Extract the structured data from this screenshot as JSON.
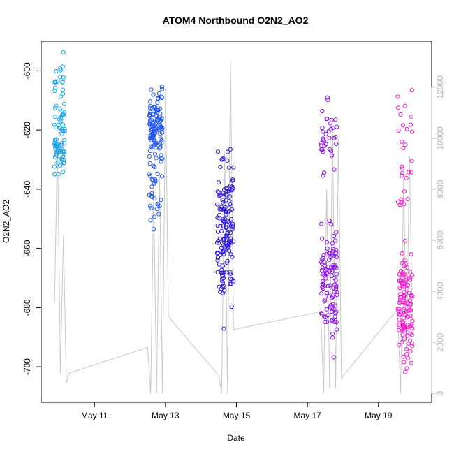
{
  "chart_data": {
    "type": "scatter",
    "title": "ATOM4 Northbound O2N2_AO2",
    "xlabel": "Date",
    "ylabel": "O2N2_AO2",
    "xlim": [
      "2016-05-09T12:00",
      "2016-05-20T12:00"
    ],
    "ylim": [
      -712,
      -590
    ],
    "y2lim": [
      -350,
      13800
    ],
    "x_ticks": [
      {
        "date": "2016-05-11T00:00",
        "label": "May 11"
      },
      {
        "date": "2016-05-13T00:00",
        "label": "May 13"
      },
      {
        "date": "2016-05-15T00:00",
        "label": "May 15"
      },
      {
        "date": "2016-05-17T00:00",
        "label": "May 17"
      },
      {
        "date": "2016-05-19T00:00",
        "label": "May 19"
      }
    ],
    "y_ticks": [
      -700,
      -680,
      -660,
      -640,
      -620,
      -600
    ],
    "y2_ticks": [
      0,
      2000,
      4000,
      6000,
      8000,
      10000,
      12000
    ],
    "series": [
      {
        "color": "#1aa3e8",
        "x_range": [
          "2016-05-09T21:00",
          "2016-05-10T04:00"
        ],
        "clusters": [
          {
            "center": -624,
            "spread": 6,
            "n": 70
          },
          {
            "center": -605,
            "spread": 5,
            "n": 20
          }
        ]
      },
      {
        "color": "#2255f0",
        "x_range": [
          "2016-05-12T13:00",
          "2016-05-12T22:00"
        ],
        "clusters": [
          {
            "center": -620,
            "spread": 6,
            "n": 120
          },
          {
            "center": -644,
            "spread": 5,
            "n": 25
          }
        ]
      },
      {
        "color": "#2c17d9",
        "x_range": [
          "2016-05-14T11:00",
          "2016-05-14T22:00"
        ],
        "clusters": [
          {
            "center": -655,
            "spread": 12,
            "n": 150
          }
        ]
      },
      {
        "color": "#8a12e0",
        "x_range": [
          "2016-05-17T09:00",
          "2016-05-17T20:00"
        ],
        "clusters": [
          {
            "center": -672,
            "spread": 10,
            "n": 110
          },
          {
            "center": -622,
            "spread": 6,
            "n": 35
          }
        ]
      },
      {
        "color": "#f51ad0",
        "x_range": [
          "2016-05-19T13:00",
          "2016-05-19T23:00"
        ],
        "clusters": [
          {
            "center": -680,
            "spread": 10,
            "n": 120
          },
          {
            "center": -625,
            "spread": 12,
            "n": 30
          }
        ]
      }
    ],
    "secondary_line": {
      "color": "#c8c8c8",
      "points": [
        [
          "2016-05-09T21:00",
          3500
        ],
        [
          "2016-05-09T23:00",
          9900
        ],
        [
          "2016-05-10T01:00",
          800
        ],
        [
          "2016-05-10T03:00",
          6200
        ],
        [
          "2016-05-10T05:00",
          400
        ],
        [
          "2016-05-10T07:00",
          800
        ],
        [
          "2016-05-12T12:00",
          1800
        ],
        [
          "2016-05-12T14:00",
          0
        ],
        [
          "2016-05-12T16:00",
          8000
        ],
        [
          "2016-05-12T18:00",
          0
        ],
        [
          "2016-05-12T20:00",
          8500
        ],
        [
          "2016-05-12T22:00",
          0
        ],
        [
          "2016-05-13T00:00",
          12000
        ],
        [
          "2016-05-13T02:00",
          3000
        ],
        [
          "2016-05-14T12:00",
          700
        ],
        [
          "2016-05-14T14:00",
          0
        ],
        [
          "2016-05-14T16:00",
          9500
        ],
        [
          "2016-05-14T18:00",
          0
        ],
        [
          "2016-05-14T20:00",
          13000
        ],
        [
          "2016-05-14T22:00",
          2500
        ],
        [
          "2016-05-17T09:00",
          3200
        ],
        [
          "2016-05-17T11:00",
          0
        ],
        [
          "2016-05-17T13:00",
          8000
        ],
        [
          "2016-05-17T15:00",
          200
        ],
        [
          "2016-05-17T17:00",
          10500
        ],
        [
          "2016-05-17T19:00",
          200
        ],
        [
          "2016-05-17T21:00",
          10000
        ],
        [
          "2016-05-17T23:00",
          600
        ],
        [
          "2016-05-19T13:00",
          3300
        ],
        [
          "2016-05-19T15:00",
          0
        ],
        [
          "2016-05-19T17:00",
          8500
        ],
        [
          "2016-05-19T19:00",
          1500
        ],
        [
          "2016-05-19T21:00",
          9300
        ],
        [
          "2016-05-19T23:00",
          2300
        ]
      ]
    },
    "grid": false
  }
}
